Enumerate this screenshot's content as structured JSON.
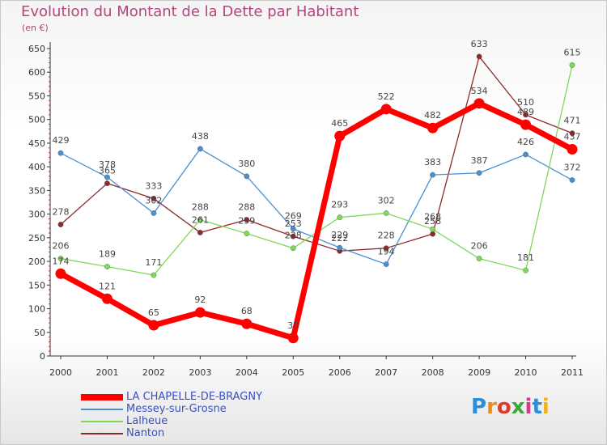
{
  "chart_data": {
    "type": "line",
    "title": "Evolution du Montant de la Dette par Habitant",
    "ylabel": "(en €)",
    "xlabel": "",
    "ylim": [
      0,
      650
    ],
    "yticks": [
      0,
      50,
      100,
      150,
      200,
      250,
      300,
      350,
      400,
      450,
      500,
      550,
      600,
      650
    ],
    "x": [
      "2000",
      "2001",
      "2002",
      "2003",
      "2004",
      "2005",
      "2006",
      "2007",
      "2008",
      "2009",
      "2010",
      "2011"
    ],
    "grid": false,
    "legend": "bottom-left",
    "series": [
      {
        "name": "LA CHAPELLE-DE-BRAGNY",
        "color": "#ff0000",
        "values": [
          174,
          121,
          65,
          92,
          68,
          38,
          465,
          522,
          482,
          534,
          489,
          437
        ],
        "labels": [
          "174",
          "121",
          "65",
          "92",
          "68",
          "38",
          "465",
          "522",
          "482",
          "534",
          "489",
          "437"
        ]
      },
      {
        "name": "Messey-sur-Grosne",
        "color": "#4a90d0",
        "values": [
          429,
          378,
          302,
          438,
          380,
          269,
          229,
          194,
          383,
          387,
          426,
          372
        ],
        "labels": [
          "429",
          "378",
          "302",
          "438",
          "380",
          "269",
          "229",
          "194",
          "383",
          "387",
          "426",
          "372"
        ]
      },
      {
        "name": "Lalheue",
        "color": "#7ed957",
        "values": [
          206,
          189,
          171,
          288,
          259,
          228,
          293,
          302,
          268,
          206,
          181,
          615
        ],
        "labels": [
          "206",
          "189",
          "171",
          "288",
          "259",
          "228",
          "293",
          "302",
          "268",
          "206",
          "181",
          "615"
        ]
      },
      {
        "name": "Nanton",
        "color": "#8b2a2a",
        "values": [
          278,
          365,
          333,
          261,
          288,
          253,
          222,
          228,
          258,
          633,
          510,
          471
        ],
        "labels": [
          "278",
          "365",
          "333",
          "261",
          "288",
          "253",
          "222",
          "228",
          "258",
          "633",
          "510",
          "471"
        ]
      }
    ]
  },
  "logo": [
    "P",
    "r",
    "o",
    "x",
    "i",
    "t",
    "i"
  ]
}
